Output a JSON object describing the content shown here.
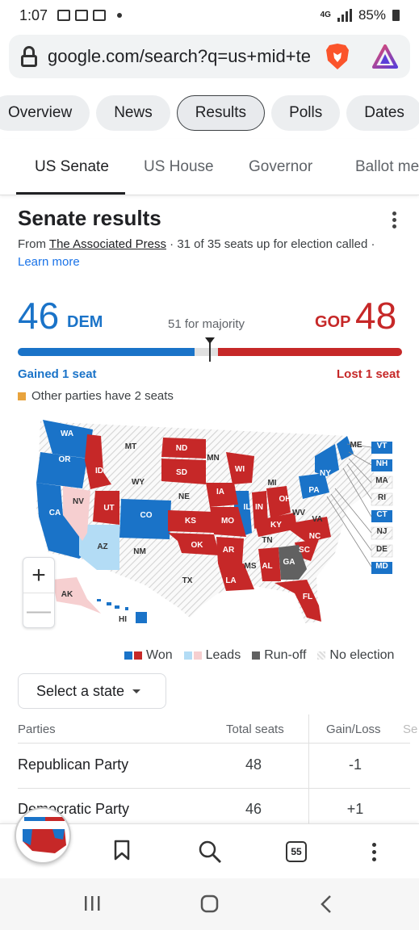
{
  "status_bar": {
    "time": "1:07",
    "network": "4G",
    "battery": "85%"
  },
  "browser": {
    "url": "google.com/search?q=us+mid+te",
    "icons": [
      "lock-icon",
      "brave-lion-icon",
      "triangle-rewards-icon"
    ]
  },
  "chips": [
    "Overview",
    "News",
    "Results",
    "Polls",
    "Dates"
  ],
  "active_chip": "Results",
  "tabs": [
    "US Senate",
    "US House",
    "Governor",
    "Ballot me"
  ],
  "active_tab": "US Senate",
  "card": {
    "title": "Senate results",
    "source_prefix": "From",
    "source_name": "The Associated Press",
    "source_suffix": "· 31 of 35 seats up for election called ·",
    "learn_more": "Learn more"
  },
  "tally": {
    "dem_seats": "46",
    "dem_label": "DEM",
    "gop_seats": "48",
    "gop_label": "GOP",
    "majority_text": "51 for majority",
    "gained_text": "Gained 1 seat",
    "lost_text": "Lost 1 seat",
    "other_text": "Other parties have 2 seats",
    "dem_fraction": 0.46,
    "gop_fraction": 0.48
  },
  "map": {
    "labels": [
      "WA",
      "OR",
      "CA",
      "ID",
      "NV",
      "MT",
      "WY",
      "UT",
      "AZ",
      "CO",
      "NM",
      "ND",
      "SD",
      "NE",
      "KS",
      "OK",
      "TX",
      "MN",
      "IA",
      "MO",
      "AR",
      "LA",
      "WI",
      "IL",
      "MI",
      "IN",
      "OH",
      "KY",
      "TN",
      "MS",
      "AL",
      "GA",
      "FL",
      "SC",
      "NC",
      "WV",
      "VA",
      "PA",
      "NY",
      "ME",
      "VT",
      "NH",
      "MA",
      "RI",
      "CT",
      "NJ",
      "DE",
      "MD",
      "AK",
      "HI"
    ],
    "zoom_in": "+",
    "zoom_out": "—"
  },
  "legend": {
    "won": "Won",
    "leads": "Leads",
    "runoff": "Run-off",
    "no_election": "No election"
  },
  "select_state": "Select a state",
  "table": {
    "headers": [
      "Parties",
      "Total seats",
      "Gain/Loss",
      "Se"
    ],
    "rows": [
      {
        "party": "Republican Party",
        "seats": "48",
        "change": "-1"
      },
      {
        "party": "Democratic Party",
        "seats": "46",
        "change": "+1"
      }
    ]
  },
  "bottom_bar": {
    "tab_count": "55"
  },
  "colors": {
    "dem": "#1a73c8",
    "gop": "#c62828",
    "dem_lead": "#b3dcf5",
    "gop_lead": "#f6cfd0",
    "runoff": "#616161"
  }
}
